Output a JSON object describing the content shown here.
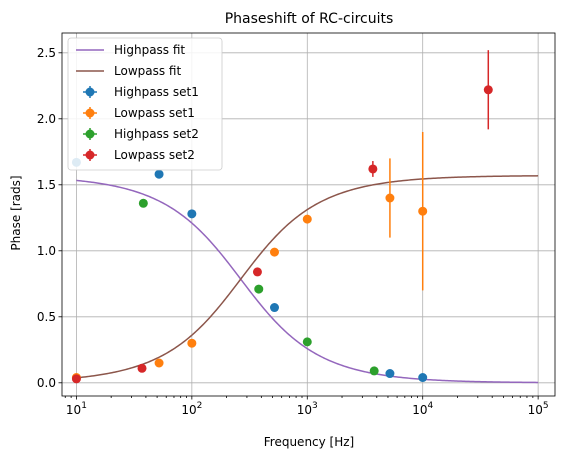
{
  "chart_data": {
    "type": "scatter",
    "title": "Phaseshift of RC-circuits",
    "xlabel": "Frequency [Hz]",
    "ylabel": "Phase [rads]",
    "xscale": "log",
    "xlim": [
      7.5,
      140000
    ],
    "ylim": [
      -0.1,
      2.65
    ],
    "grid": true,
    "legend_position": "top-left",
    "x_ticks": [
      {
        "value": 10,
        "base": "10",
        "exp": "1"
      },
      {
        "value": 100,
        "base": "10",
        "exp": "2"
      },
      {
        "value": 1000,
        "base": "10",
        "exp": "3"
      },
      {
        "value": 10000,
        "base": "10",
        "exp": "4"
      },
      {
        "value": 100000,
        "base": "10",
        "exp": "5"
      }
    ],
    "y_ticks": [
      {
        "value": 0.0,
        "label": "0.0"
      },
      {
        "value": 0.5,
        "label": "0.5"
      },
      {
        "value": 1.0,
        "label": "1.0"
      },
      {
        "value": 1.5,
        "label": "1.5"
      },
      {
        "value": 2.0,
        "label": "2.0"
      },
      {
        "value": 2.5,
        "label": "2.5"
      }
    ],
    "fits": [
      {
        "name": "Highpass fit",
        "kind": "highpass",
        "fc": 265,
        "color": "#9467bd"
      },
      {
        "name": "Lowpass fit",
        "kind": "lowpass",
        "fc": 265,
        "color": "#8c564b"
      }
    ],
    "series": [
      {
        "name": "Highpass set1",
        "color": "#1f77b4",
        "points": [
          {
            "x": 10,
            "y": 1.67,
            "err": 0
          },
          {
            "x": 52,
            "y": 1.58,
            "err": 0
          },
          {
            "x": 100,
            "y": 1.28,
            "err": 0
          },
          {
            "x": 520,
            "y": 0.57,
            "err": 0
          },
          {
            "x": 5200,
            "y": 0.07,
            "err": 0
          },
          {
            "x": 10000,
            "y": 0.04,
            "err": 0
          }
        ]
      },
      {
        "name": "Lowpass set1",
        "color": "#ff7f0e",
        "points": [
          {
            "x": 10,
            "y": 0.04,
            "err": 0
          },
          {
            "x": 52,
            "y": 0.15,
            "err": 0
          },
          {
            "x": 100,
            "y": 0.3,
            "err": 0
          },
          {
            "x": 520,
            "y": 0.99,
            "err": 0
          },
          {
            "x": 1000,
            "y": 1.24,
            "err": 0
          },
          {
            "x": 5200,
            "y": 1.4,
            "err": 0.3
          },
          {
            "x": 10000,
            "y": 1.3,
            "err": 0.6
          }
        ]
      },
      {
        "name": "Highpass set2",
        "color": "#2ca02c",
        "points": [
          {
            "x": 38,
            "y": 1.36,
            "err": 0
          },
          {
            "x": 380,
            "y": 0.71,
            "err": 0
          },
          {
            "x": 1000,
            "y": 0.31,
            "err": 0
          },
          {
            "x": 3800,
            "y": 0.09,
            "err": 0
          }
        ]
      },
      {
        "name": "Lowpass set2",
        "color": "#d62728",
        "points": [
          {
            "x": 10,
            "y": 0.03,
            "err": 0
          },
          {
            "x": 37,
            "y": 0.11,
            "err": 0
          },
          {
            "x": 370,
            "y": 0.84,
            "err": 0
          },
          {
            "x": 3700,
            "y": 1.62,
            "err": 0.06
          },
          {
            "x": 37000,
            "y": 2.22,
            "err": 0.3
          }
        ]
      }
    ]
  }
}
